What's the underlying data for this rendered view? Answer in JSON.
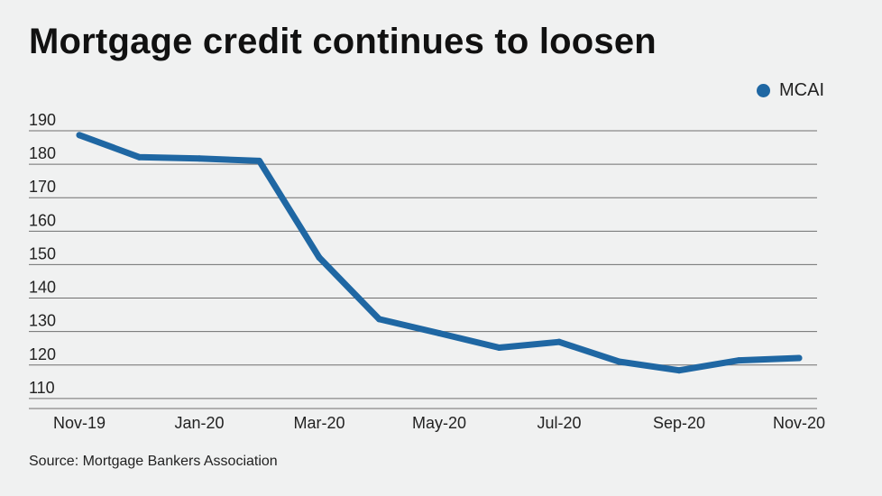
{
  "chart_data": {
    "type": "line",
    "title": "Mortgage credit continues to loosen",
    "source": "Source: Mortgage Bankers Association",
    "xlabel": "",
    "ylabel": "",
    "x": [
      "Nov-19",
      "Dec-19",
      "Jan-20",
      "Feb-20",
      "Mar-20",
      "Apr-20",
      "May-20",
      "Jun-20",
      "Jul-20",
      "Aug-20",
      "Sep-20",
      "Oct-20",
      "Nov-20"
    ],
    "x_tick_labels": [
      "Nov-19",
      "Jan-20",
      "Mar-20",
      "May-20",
      "Jul-20",
      "Sep-20",
      "Nov-20"
    ],
    "y_ticks": [
      190,
      180,
      170,
      160,
      150,
      140,
      130,
      120,
      110
    ],
    "ylim": [
      107,
      190
    ],
    "grid": true,
    "legend_position": "top-right",
    "series": [
      {
        "name": "MCAI",
        "color": "#1f67a3",
        "values": [
          188.7,
          182.1,
          181.7,
          181.0,
          152.1,
          133.7,
          129.5,
          125.2,
          126.9,
          121.0,
          118.4,
          121.4,
          122.1
        ]
      }
    ]
  }
}
